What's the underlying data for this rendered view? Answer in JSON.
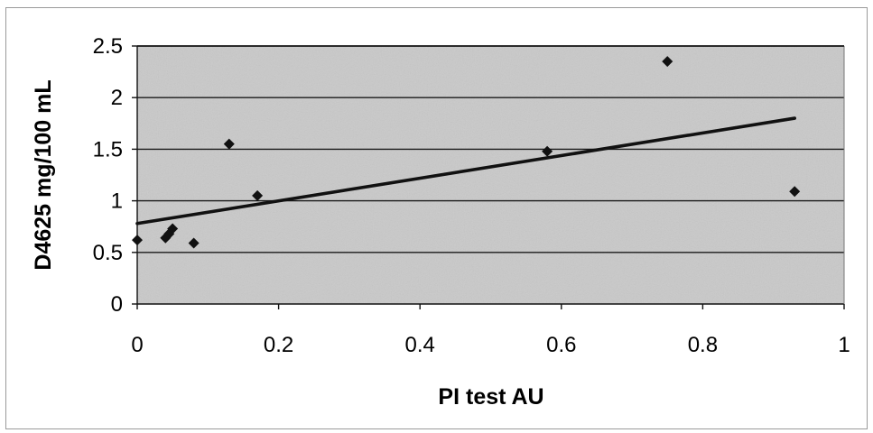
{
  "chart_data": {
    "type": "scatter",
    "title": "",
    "xlabel": "PI test AU",
    "ylabel": "D4625 mg/100 mL",
    "xlim": [
      0,
      1
    ],
    "ylim": [
      0,
      2.5
    ],
    "x_ticks": [
      "0",
      "0.2",
      "0.4",
      "0.6",
      "0.8",
      "1"
    ],
    "y_ticks": [
      "0",
      "0.5",
      "1",
      "1.5",
      "2",
      "2.5"
    ],
    "grid": "horizontal",
    "legend": "none",
    "marker": "diamond",
    "series": [
      {
        "points": [
          {
            "x": 0.0,
            "y": 0.62
          },
          {
            "x": 0.04,
            "y": 0.64
          },
          {
            "x": 0.045,
            "y": 0.68
          },
          {
            "x": 0.05,
            "y": 0.73
          },
          {
            "x": 0.08,
            "y": 0.59
          },
          {
            "x": 0.13,
            "y": 1.55
          },
          {
            "x": 0.17,
            "y": 1.05
          },
          {
            "x": 0.58,
            "y": 1.48
          },
          {
            "x": 0.75,
            "y": 2.35
          },
          {
            "x": 0.93,
            "y": 1.09
          }
        ]
      }
    ],
    "trendline": {
      "type": "linear",
      "x": [
        0,
        0.93
      ],
      "y": [
        0.78,
        1.8
      ]
    },
    "colors": {
      "plot_background": "#c9c9c9",
      "gridline": "#1a1a1a",
      "marker": "#111111",
      "trendline": "#111111",
      "text": "#000000"
    }
  }
}
